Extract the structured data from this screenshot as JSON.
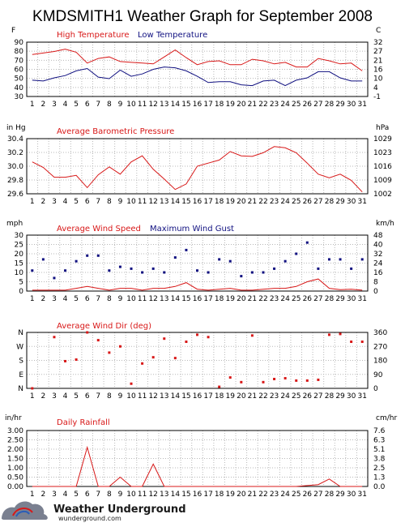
{
  "page": {
    "title": "KMDSMITH1 Weather Graph for September 2008",
    "logo_text": "Weather Underground",
    "logo_sub": "wunderground.com"
  },
  "colors": {
    "red": "#d81818",
    "blue": "#101080",
    "grid": "#b8b8b8",
    "frame": "#000000",
    "logo_blue": "#2a5db8"
  },
  "chart_data": [
    {
      "id": "temperature",
      "type": "line",
      "left_unit": "F",
      "right_unit": "C",
      "x": [
        1,
        2,
        3,
        4,
        5,
        6,
        7,
        8,
        9,
        10,
        11,
        12,
        13,
        14,
        15,
        16,
        17,
        18,
        19,
        20,
        21,
        22,
        23,
        24,
        25,
        26,
        27,
        28,
        29,
        30,
        31
      ],
      "left_ticks": [
        "90",
        "80",
        "70",
        "60",
        "50",
        "40",
        "30"
      ],
      "right_ticks": [
        "32",
        "27",
        "21",
        "16",
        "10",
        "4",
        "-1"
      ],
      "ylim": [
        30,
        100
      ],
      "series": [
        {
          "name": "High Temperature",
          "color": "#d81818",
          "values": [
            84,
            86,
            88,
            91,
            87,
            73,
            79,
            81,
            75,
            74,
            73,
            72,
            81,
            90,
            80,
            71,
            75,
            76,
            71,
            71,
            78,
            76,
            72,
            74,
            68,
            68,
            79,
            76,
            72,
            73,
            63
          ]
        },
        {
          "name": "Low Temperature",
          "color": "#101080",
          "values": [
            51,
            50,
            54,
            57,
            63,
            66,
            55,
            53,
            64,
            56,
            59,
            65,
            68,
            67,
            63,
            56,
            48,
            49,
            49,
            45,
            44,
            50,
            51,
            44,
            51,
            54,
            62,
            62,
            54,
            50,
            50
          ]
        }
      ]
    },
    {
      "id": "pressure",
      "type": "line",
      "left_unit": "in Hg",
      "right_unit": "hPa",
      "x": [
        1,
        2,
        3,
        4,
        5,
        6,
        7,
        8,
        9,
        10,
        11,
        12,
        13,
        14,
        15,
        16,
        17,
        18,
        19,
        20,
        21,
        22,
        23,
        24,
        25,
        26,
        27,
        28,
        29,
        30,
        31
      ],
      "left_ticks": [
        "30.4",
        "30.2",
        "30.0",
        "29.8",
        "29.6"
      ],
      "right_ticks": [
        "1029",
        "1023",
        "1016",
        "1009",
        "1002"
      ],
      "ylim": [
        29.6,
        30.5
      ],
      "series": [
        {
          "name": "Average Barometric Pressure",
          "color": "#d81818",
          "values": [
            30.12,
            30.03,
            29.87,
            29.87,
            29.9,
            29.7,
            29.91,
            30.04,
            29.92,
            30.12,
            30.22,
            30.0,
            29.84,
            29.67,
            29.76,
            30.05,
            30.1,
            30.15,
            30.29,
            30.22,
            30.21,
            30.27,
            30.37,
            30.35,
            30.27,
            30.1,
            29.92,
            29.86,
            29.92,
            29.82,
            29.63
          ]
        }
      ]
    },
    {
      "id": "wind",
      "type": "line",
      "left_unit": "mph",
      "right_unit": "km/h",
      "x": [
        1,
        2,
        3,
        4,
        5,
        6,
        7,
        8,
        9,
        10,
        11,
        12,
        13,
        14,
        15,
        16,
        17,
        18,
        19,
        20,
        21,
        22,
        23,
        24,
        25,
        26,
        27,
        28,
        29,
        30,
        31
      ],
      "left_ticks": [
        "30",
        "25",
        "20",
        "15",
        "10",
        "5",
        "0"
      ],
      "right_ticks": [
        "48",
        "40",
        "32",
        "24",
        "16",
        "8",
        "0"
      ],
      "ylim": [
        0,
        30
      ],
      "series": [
        {
          "name": "Average Wind Speed",
          "color": "#d81818",
          "style": "line",
          "values": [
            0.5,
            0.5,
            0.5,
            0.5,
            1.5,
            2.5,
            1.5,
            0.5,
            1.5,
            1.5,
            0.5,
            1.5,
            1.5,
            2.5,
            4.5,
            1.0,
            0.5,
            1.0,
            1.5,
            0.5,
            0.5,
            1.0,
            1.5,
            1.5,
            2.5,
            5.0,
            6.5,
            1.5,
            0.8,
            1.0,
            0.5
          ]
        },
        {
          "name": "Maximum Wind Gust",
          "color": "#101080",
          "style": "points",
          "values": [
            11,
            17,
            7,
            11,
            16,
            19,
            19,
            11,
            13,
            12,
            10,
            12,
            10,
            18,
            22,
            11,
            10,
            17,
            16,
            8,
            10,
            10,
            12,
            16,
            20,
            26,
            12,
            17,
            17,
            12,
            17
          ]
        }
      ]
    },
    {
      "id": "wind_direction",
      "type": "scatter",
      "left_ticks": [
        "N",
        "W",
        "S",
        "E",
        "N"
      ],
      "right_ticks": [
        "360",
        "270",
        "180",
        "90",
        "0"
      ],
      "ylim": [
        0,
        360
      ],
      "series": [
        {
          "name": "Average Wind Dir (deg)",
          "color": "#d81818",
          "points": [
            [
              1,
              0
            ],
            [
              3,
              330
            ],
            [
              4,
              175
            ],
            [
              5,
              185
            ],
            [
              6,
              360
            ],
            [
              7,
              310
            ],
            [
              8,
              230
            ],
            [
              9,
              270
            ],
            [
              10,
              30
            ],
            [
              11,
              160
            ],
            [
              12,
              200
            ],
            [
              13,
              320
            ],
            [
              14,
              195
            ],
            [
              15,
              300
            ],
            [
              16,
              345
            ],
            [
              17,
              330
            ],
            [
              18,
              10
            ],
            [
              19,
              70
            ],
            [
              20,
              40
            ],
            [
              21,
              340
            ],
            [
              22,
              40
            ],
            [
              23,
              60
            ],
            [
              24,
              65
            ],
            [
              25,
              50
            ],
            [
              26,
              50
            ],
            [
              27,
              55
            ],
            [
              28,
              345
            ],
            [
              29,
              350
            ],
            [
              30,
              300
            ],
            [
              31,
              300
            ]
          ]
        }
      ]
    },
    {
      "id": "rainfall",
      "type": "line",
      "left_unit": "in/hr",
      "right_unit": "cm/hr",
      "x": [
        1,
        2,
        3,
        4,
        5,
        6,
        7,
        8,
        9,
        10,
        11,
        12,
        13,
        14,
        15,
        16,
        17,
        18,
        19,
        20,
        21,
        22,
        23,
        24,
        25,
        26,
        27,
        28,
        29,
        30,
        31
      ],
      "left_ticks": [
        "3.00",
        "2.50",
        "2.00",
        "1.50",
        "1.00",
        "0.50",
        "0.00"
      ],
      "right_ticks": [
        "7.6",
        "6.3",
        "5.1",
        "3.8",
        "2.5",
        "1.3",
        "0.0"
      ],
      "ylim": [
        0,
        3
      ],
      "series": [
        {
          "name": "Daily Rainfall",
          "color": "#d81818",
          "values": [
            0,
            0,
            0,
            0,
            0,
            2.1,
            0,
            0,
            0.5,
            0,
            0,
            1.2,
            0,
            0,
            0,
            0,
            0,
            0,
            0,
            0,
            0,
            0,
            0,
            0,
            0,
            0.05,
            0.1,
            0.4,
            0,
            0,
            0
          ]
        }
      ]
    }
  ]
}
